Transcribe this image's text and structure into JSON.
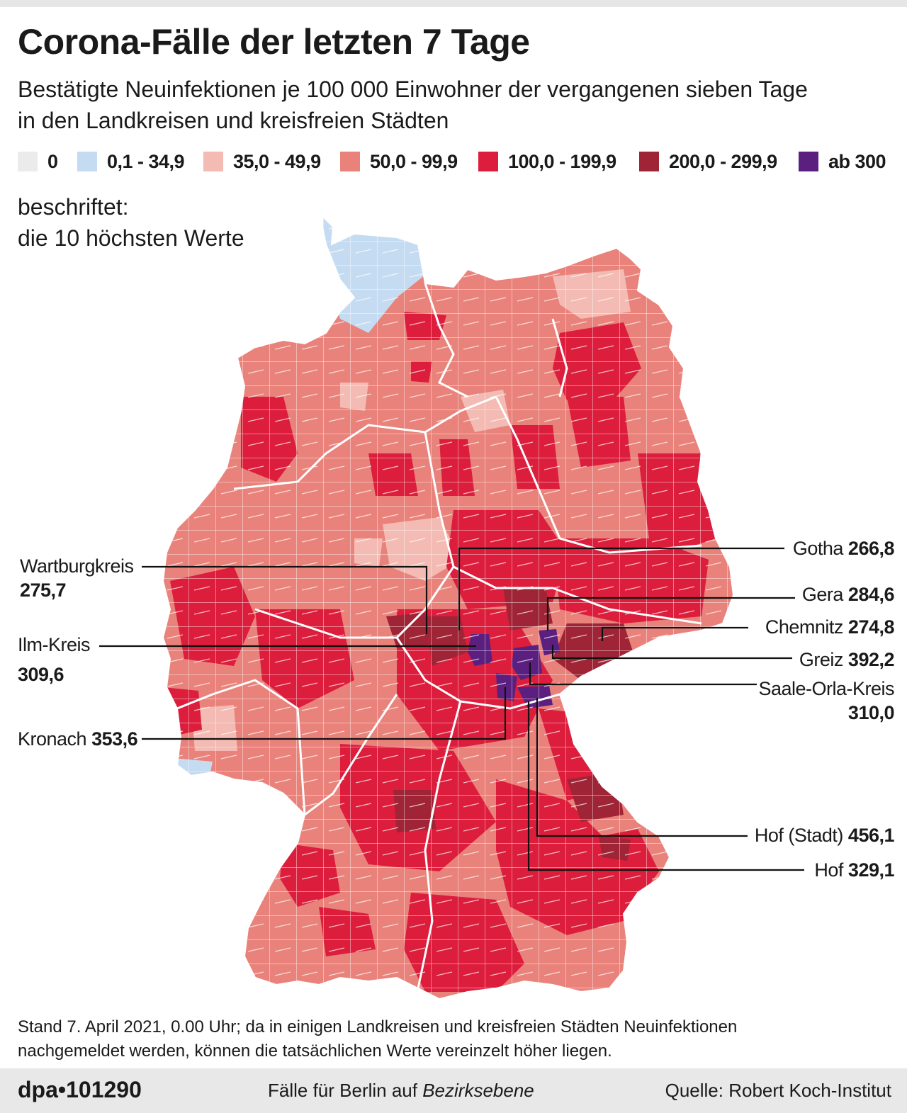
{
  "header": {
    "title": "Corona-Fälle der letzten 7 Tage",
    "subtitle_line1": "Bestätigte Neuinfektionen je 100 000 Einwohner der vergangenen sieben Tage",
    "subtitle_line2": "in den Landkreisen und kreisfreien Städten"
  },
  "legend": {
    "items": [
      {
        "label": "0",
        "color": "#ebebeb"
      },
      {
        "label": "0,1 - 34,9",
        "color": "#c5dbf1"
      },
      {
        "label": "35,0 - 49,9",
        "color": "#f3bbb3"
      },
      {
        "label": "50,0 - 99,9",
        "color": "#e9827b"
      },
      {
        "label": "100,0 - 199,9",
        "color": "#dc1d3c"
      },
      {
        "label": "200,0 - 299,9",
        "color": "#9e2436"
      },
      {
        "label": "ab 300",
        "color": "#5b1f80"
      }
    ]
  },
  "labeled_note": {
    "line1": "beschriftet:",
    "line2": "die 10 höchsten Werte"
  },
  "callouts": [
    {
      "name": "Wartburgkreis",
      "value": "275,7"
    },
    {
      "name": "Ilm-Kreis",
      "value": "309,6"
    },
    {
      "name": "Kronach",
      "value": "353,6"
    },
    {
      "name": "Gotha",
      "value": "266,8"
    },
    {
      "name": "Gera",
      "value": "284,6"
    },
    {
      "name": "Chemnitz",
      "value": "274,8"
    },
    {
      "name": "Greiz",
      "value": "392,2"
    },
    {
      "name": "Saale-Orla-Kreis",
      "value": "310,0"
    },
    {
      "name": "Hof (Stadt)",
      "value": "456,1"
    },
    {
      "name": "Hof",
      "value": "329,1"
    }
  ],
  "note": {
    "line1": "Stand 7. April 2021, 0.00 Uhr; da in einigen Landkreisen und kreisfreien Städten Neuinfektionen",
    "line2": "nachgemeldet werden, können die tatsächlichen Werte vereinzelt höher liegen."
  },
  "footer": {
    "agency": "dpa•101290",
    "berlin_prefix": "Fälle für Berlin auf ",
    "berlin_italic": "Bezirksebene",
    "source": "Quelle: Robert Koch-Institut"
  }
}
